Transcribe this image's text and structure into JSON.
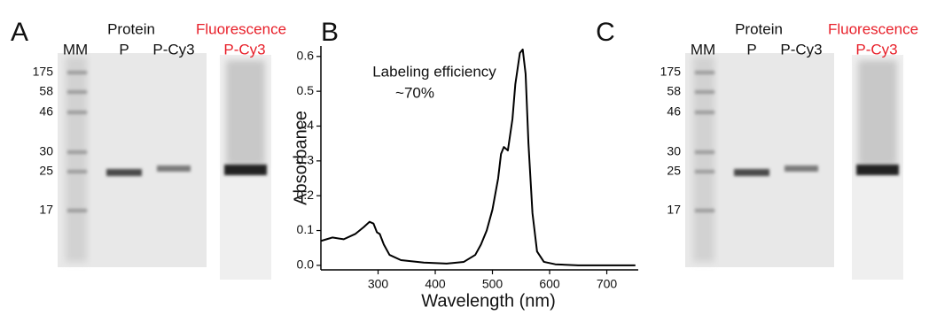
{
  "panels": [
    {
      "label": "A",
      "lanes": [
        "MM",
        "P",
        "P-Cy3"
      ],
      "group": "Protein",
      "fluorescence": "Fluorescence",
      "fluor_lane": "P-Cy3",
      "markers": [
        175,
        58,
        46,
        30,
        25,
        17
      ]
    },
    {
      "label": "C",
      "lanes": [
        "MM",
        "P",
        "P-Cy3"
      ],
      "group": "Protein",
      "fluorescence": "Fluorescence",
      "fluor_lane": "P-Cy3",
      "markers": [
        175,
        58,
        46,
        30,
        25,
        17
      ]
    }
  ],
  "chart_data": {
    "type": "line",
    "panel_label": "B",
    "annotations": [
      "Labeling efficiency",
      "~70%"
    ],
    "xlabel": "Wavelength (nm)",
    "ylabel": "Absorbance",
    "xlim": [
      200,
      755
    ],
    "ylim": [
      -0.013,
      0.63
    ],
    "xticks": [
      300,
      400,
      500,
      600,
      700
    ],
    "yticks": [
      {
        "value": 0,
        "label": "0.0"
      },
      0.1,
      0.2,
      0.3,
      0.4,
      0.5,
      0.6
    ],
    "color": "#000000",
    "x": [
      200,
      210,
      220,
      240,
      260,
      275,
      285,
      292,
      298,
      303,
      310,
      320,
      340,
      380,
      420,
      450,
      470,
      480,
      490,
      500,
      510,
      515,
      520,
      527,
      535,
      540,
      548,
      553,
      558,
      563,
      570,
      578,
      590,
      610,
      650,
      700,
      750
    ],
    "values": [
      0.07,
      0.075,
      0.08,
      0.075,
      0.09,
      0.11,
      0.125,
      0.12,
      0.095,
      0.09,
      0.06,
      0.03,
      0.015,
      0.008,
      0.005,
      0.01,
      0.03,
      0.06,
      0.1,
      0.16,
      0.25,
      0.32,
      0.34,
      0.33,
      0.42,
      0.52,
      0.61,
      0.62,
      0.55,
      0.35,
      0.15,
      0.04,
      0.01,
      0.003,
      0,
      0,
      0
    ]
  }
}
